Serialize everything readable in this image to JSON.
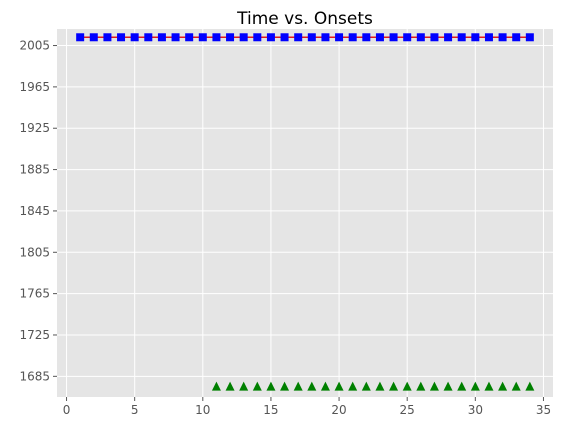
{
  "chart_data": {
    "type": "line",
    "title": "Time vs. Onsets",
    "xlabel": "",
    "ylabel": "",
    "xlim": [
      -0.7,
      35.7
    ],
    "ylim": [
      1665,
      2021
    ],
    "xticks": [
      0,
      5,
      10,
      15,
      20,
      25,
      30,
      35
    ],
    "yticks": [
      1685,
      1725,
      1765,
      1805,
      1845,
      1885,
      1925,
      1965,
      2005
    ],
    "grid": true,
    "background": "#e5e5e5",
    "grid_color": "#ffffff",
    "series": [
      {
        "style": "red line",
        "line_color": "#e41a1c",
        "marker": "none",
        "x": [
          1,
          34
        ],
        "y": [
          2013,
          2013
        ]
      },
      {
        "style": "blue squares",
        "marker": "square",
        "color": "#0000ff",
        "x": [
          1,
          2,
          3,
          4,
          5,
          6,
          7,
          8,
          9,
          10,
          11,
          12,
          13,
          14,
          15,
          16,
          17,
          18,
          19,
          20,
          21,
          22,
          23,
          24,
          25,
          26,
          27,
          28,
          29,
          30,
          31,
          32,
          33,
          34
        ],
        "y": [
          2013,
          2013,
          2013,
          2013,
          2013,
          2013,
          2013,
          2013,
          2013,
          2013,
          2013,
          2013,
          2013,
          2013,
          2013,
          2013,
          2013,
          2013,
          2013,
          2013,
          2013,
          2013,
          2013,
          2013,
          2013,
          2013,
          2013,
          2013,
          2013,
          2013,
          2013,
          2013,
          2013,
          2013
        ]
      },
      {
        "style": "green triangles",
        "marker": "triangle",
        "color": "#008000",
        "x": [
          11,
          12,
          13,
          14,
          15,
          16,
          17,
          18,
          19,
          20,
          21,
          22,
          23,
          24,
          25,
          26,
          27,
          28,
          29,
          30,
          31,
          32,
          33,
          34
        ],
        "y": [
          1675,
          1675,
          1675,
          1675,
          1675,
          1675,
          1675,
          1675,
          1675,
          1675,
          1675,
          1675,
          1675,
          1675,
          1675,
          1675,
          1675,
          1675,
          1675,
          1675,
          1675,
          1675,
          1675,
          1675
        ]
      }
    ]
  }
}
